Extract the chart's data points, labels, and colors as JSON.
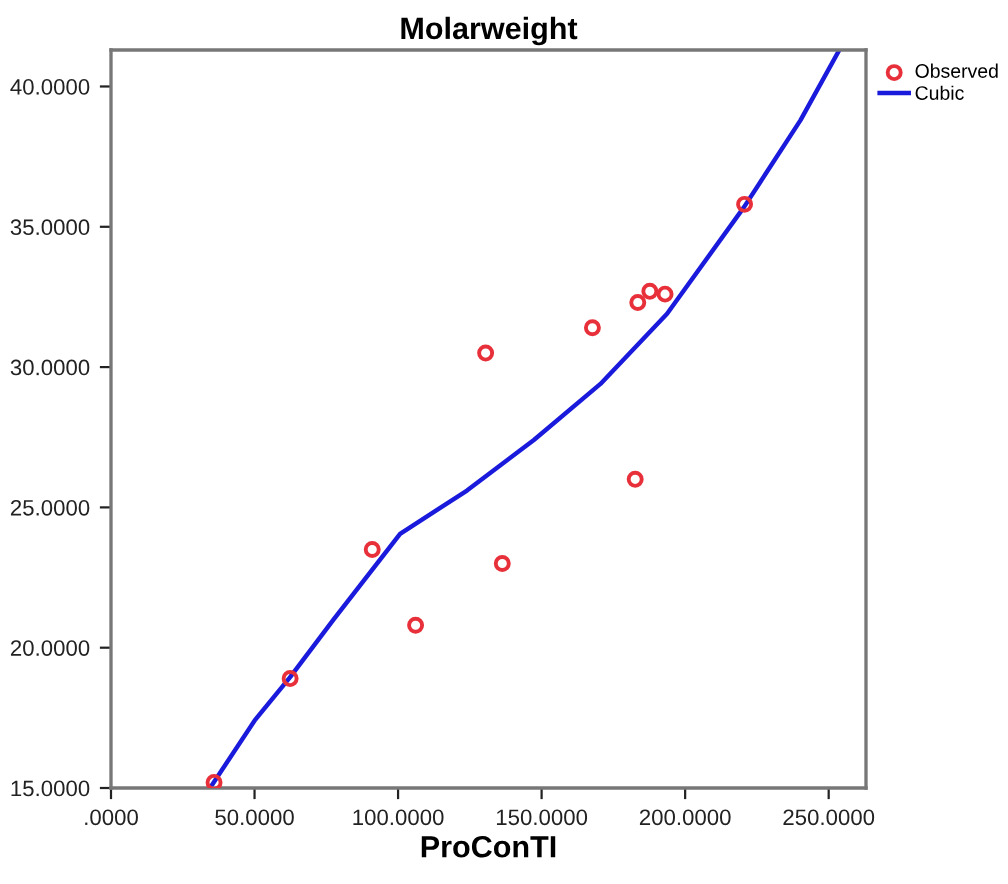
{
  "chart_data": {
    "type": "scatter",
    "title": "Molarweight",
    "xlabel": "ProConTI",
    "xlim": [
      0,
      263
    ],
    "ylim": [
      15,
      41.3
    ],
    "xticks": [
      {
        "value": 0,
        "label": ".0000"
      },
      {
        "value": 50,
        "label": "50.0000"
      },
      {
        "value": 100,
        "label": "100.0000"
      },
      {
        "value": 150,
        "label": "150.0000"
      },
      {
        "value": 200,
        "label": "200.0000"
      },
      {
        "value": 250,
        "label": "250.0000"
      }
    ],
    "yticks": [
      {
        "value": 15,
        "label": "15.0000"
      },
      {
        "value": 20,
        "label": "20.0000"
      },
      {
        "value": 25,
        "label": "25.0000"
      },
      {
        "value": 30,
        "label": "30.0000"
      },
      {
        "value": 35,
        "label": "35.0000"
      },
      {
        "value": 40,
        "label": "40.0000"
      }
    ],
    "grid": false,
    "legend": "top right",
    "series": [
      {
        "name": "Observed",
        "marker": "circle",
        "color": "#e8303a",
        "x": [
          35.9,
          62.4,
          91.0,
          106.1,
          130.5,
          136.3,
          167.7,
          183.5,
          187.7,
          193.0,
          182.6,
          220.7
        ],
        "values": [
          15.2,
          18.9,
          23.5,
          20.8,
          30.5,
          23.0,
          31.4,
          32.3,
          32.7,
          32.6,
          26.0,
          35.8
        ]
      },
      {
        "name": "Cubic",
        "type": "line",
        "marker": "none",
        "line_style": "solid",
        "color": "#1a1adc",
        "x": [
          34.5,
          50,
          62.4,
          77.5,
          100.7,
          124,
          147.3,
          170.5,
          193.7,
          220.5,
          240.2,
          253.7
        ],
        "values": [
          15.0,
          17.4,
          18.95,
          21.0,
          24.06,
          25.6,
          27.4,
          29.4,
          31.9,
          35.7,
          38.8,
          41.3
        ]
      }
    ]
  }
}
